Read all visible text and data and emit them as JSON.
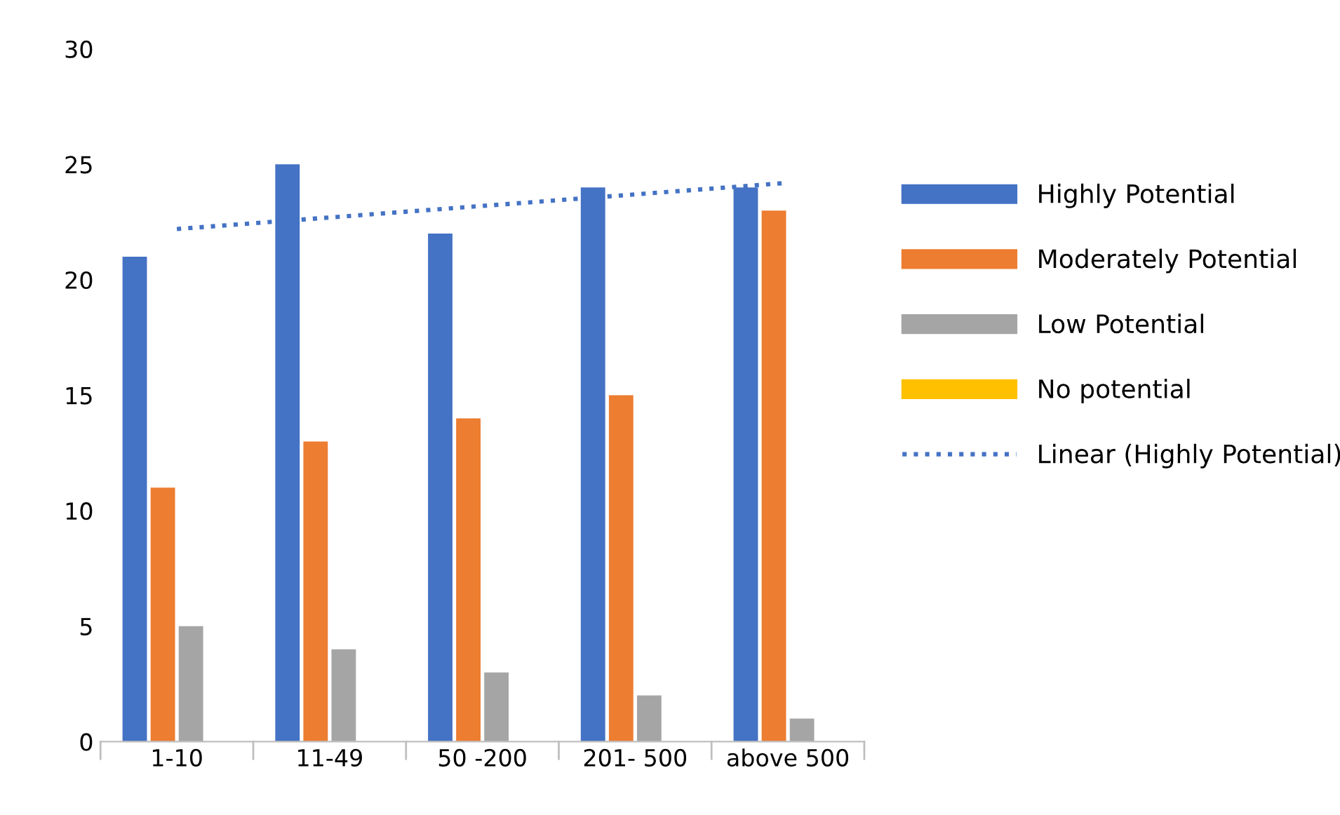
{
  "chart_data": {
    "type": "bar",
    "categories": [
      "1-10",
      "11-49",
      "50 -200",
      "201- 500",
      "above 500"
    ],
    "series": [
      {
        "name": "Highly Potential",
        "color": "#4472c4",
        "values": [
          21,
          25,
          22,
          24,
          24
        ]
      },
      {
        "name": "Moderately Potential",
        "color": "#ed7d31",
        "values": [
          11,
          13,
          14,
          15,
          23
        ]
      },
      {
        "name": "Low Potential",
        "color": "#a5a5a5",
        "values": [
          5,
          4,
          3,
          2,
          1
        ]
      },
      {
        "name": "No potential",
        "color": "#ffc000",
        "values": [
          0,
          0,
          0,
          0,
          0
        ]
      },
      {
        "name": "Linear (Highly Potential)",
        "type": "line",
        "color": "#4472c4",
        "line_style": "dotted",
        "values": [
          22.2,
          22.7,
          23.2,
          23.7,
          24.2
        ]
      }
    ],
    "ylim": [
      0,
      30
    ],
    "yticks": [
      0,
      5,
      10,
      15,
      20,
      25,
      30
    ],
    "grid": false,
    "legend": "right"
  }
}
